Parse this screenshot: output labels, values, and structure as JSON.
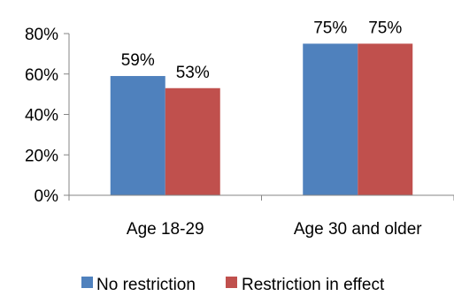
{
  "chart_data": {
    "type": "bar",
    "title": "",
    "xlabel": "",
    "ylabel": "",
    "categories": [
      "Age 18-29",
      "Age 30 and older"
    ],
    "series": [
      {
        "name": "No restriction",
        "values": [
          59,
          75
        ],
        "labels": [
          "59%",
          "75%"
        ],
        "color": "#4F81BD"
      },
      {
        "name": "Restriction in effect",
        "values": [
          53,
          75
        ],
        "labels": [
          "53%",
          "75%"
        ],
        "color": "#C0504D"
      }
    ],
    "ylim": [
      0,
      80
    ],
    "yticks": [
      0,
      20,
      40,
      60,
      80
    ],
    "ytick_labels": [
      "0%",
      "20%",
      "40%",
      "60%",
      "80%"
    ],
    "grid": false,
    "legend_position": "bottom"
  }
}
